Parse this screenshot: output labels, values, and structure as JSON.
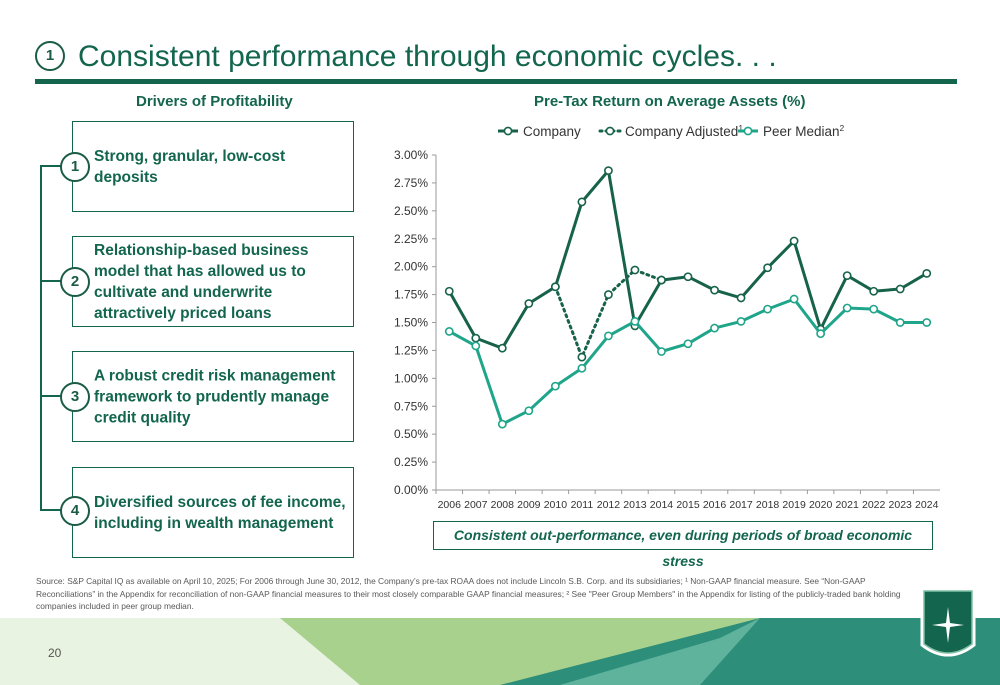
{
  "header": {
    "badge": "1",
    "title": "Consistent performance through economic cycles. . ."
  },
  "drivers": {
    "heading": "Drivers of Profitability",
    "items": [
      {
        "num": "1",
        "text": "Strong, granular, low-cost deposits"
      },
      {
        "num": "2",
        "text": "Relationship-based business model that has allowed us to cultivate and underwrite attractively priced loans"
      },
      {
        "num": "3",
        "text": "A robust credit risk management framework to prudently manage credit quality"
      },
      {
        "num": "4",
        "text": "Diversified sources of fee income, including in wealth management"
      }
    ]
  },
  "chart_data": {
    "type": "line",
    "title": "Pre-Tax Return on Average Assets (%)",
    "x": [
      "2006",
      "2007",
      "2008",
      "2009",
      "2010",
      "2011",
      "2012",
      "2013",
      "2014",
      "2015",
      "2016",
      "2017",
      "2018",
      "2019",
      "2020",
      "2021",
      "2022",
      "2023",
      "2024"
    ],
    "y_ticks": [
      "0.00%",
      "0.25%",
      "0.50%",
      "0.75%",
      "1.00%",
      "1.25%",
      "1.50%",
      "1.75%",
      "2.00%",
      "2.25%",
      "2.50%",
      "2.75%",
      "3.00%"
    ],
    "ylim": [
      0,
      3.0
    ],
    "grid": false,
    "legend_position": "top",
    "series": [
      {
        "name": "Company",
        "sup": "",
        "color": "#17624a",
        "style": "solid",
        "values": [
          1.78,
          1.36,
          1.27,
          1.67,
          1.82,
          2.58,
          2.86,
          1.47,
          1.88,
          1.91,
          1.79,
          1.72,
          1.99,
          2.23,
          1.44,
          1.92,
          1.78,
          1.8,
          1.94
        ]
      },
      {
        "name": "Company Adjusted",
        "sup": "1",
        "color": "#17624a",
        "style": "dotted",
        "values": [
          null,
          null,
          null,
          null,
          1.82,
          1.19,
          1.75,
          1.97,
          1.88,
          null,
          null,
          null,
          null,
          null,
          null,
          null,
          null,
          null,
          null
        ]
      },
      {
        "name": "Peer Median",
        "sup": "2",
        "color": "#1fa58a",
        "style": "solid",
        "values": [
          1.42,
          1.29,
          0.59,
          0.71,
          0.93,
          1.09,
          1.38,
          1.51,
          1.24,
          1.31,
          1.45,
          1.51,
          1.62,
          1.71,
          1.4,
          1.63,
          1.62,
          1.5,
          1.5
        ]
      }
    ]
  },
  "caption": "Consistent out-performance, even during periods of broad economic stress",
  "footnote": "Source: S&P Capital IQ as available on April 10, 2025; For 2006 through June 30, 2012, the Company’s pre-tax ROAA does not include Lincoln S.B. Corp. and its subsidiaries; ¹ Non-GAAP financial measure. See “Non-GAAP Reconciliations” in the Appendix for reconciliation of non-GAAP financial measures to their most closely comparable GAAP financial measures; ² See \"Peer Group Members\" in the Appendix for listing of the publicly-traded bank holding companies included in peer group median.",
  "page_number": "20",
  "colors": {
    "brand_dark": "#13664d",
    "brand_teal": "#1fa58a",
    "light_green": "#a9d18e"
  }
}
